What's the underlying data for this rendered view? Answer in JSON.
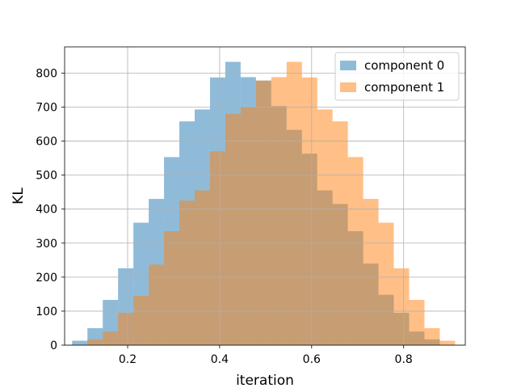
{
  "chart_data": {
    "type": "bar",
    "title": "",
    "xlabel": "iteration",
    "ylabel": "KL",
    "xlim": [
      0.063,
      0.934
    ],
    "ylim": [
      0,
      877
    ],
    "xticks": [
      0.2,
      0.4,
      0.6,
      0.8
    ],
    "xtick_labels": [
      "0.2",
      "0.4",
      "0.6",
      "0.8"
    ],
    "yticks": [
      0,
      100,
      200,
      300,
      400,
      500,
      600,
      700,
      800
    ],
    "ytick_labels": [
      "0",
      "100",
      "200",
      "300",
      "400",
      "500",
      "600",
      "700",
      "800"
    ],
    "grid": true,
    "legend_position": "upper right",
    "alpha": 0.5,
    "series": [
      {
        "name": "component 0",
        "color": "#1f77b4",
        "bin_edges": [
          0.0793,
          0.1126,
          0.1459,
          0.1792,
          0.2125,
          0.2458,
          0.2791,
          0.3124,
          0.3457,
          0.379,
          0.4123,
          0.4456,
          0.4789,
          0.5122,
          0.5455,
          0.5788,
          0.6121,
          0.6454,
          0.6787,
          0.712,
          0.7453,
          0.7786,
          0.8119,
          0.8452,
          0.8785,
          0.9118
        ],
        "counts": [
          13,
          50,
          133,
          226,
          360,
          430,
          553,
          658,
          693,
          787,
          833,
          788,
          778,
          703,
          633,
          563,
          455,
          415,
          335,
          240,
          148,
          95,
          40,
          17,
          0
        ]
      },
      {
        "name": "component 1",
        "color": "#ff7f0e",
        "bin_edges": [
          0.0793,
          0.1126,
          0.1459,
          0.1792,
          0.2125,
          0.2458,
          0.2791,
          0.3124,
          0.3457,
          0.379,
          0.4123,
          0.4456,
          0.4789,
          0.5122,
          0.5455,
          0.5788,
          0.6121,
          0.6454,
          0.6787,
          0.712,
          0.7453,
          0.7786,
          0.8119,
          0.8452,
          0.8785,
          0.9118
        ],
        "counts": [
          0,
          17,
          40,
          95,
          145,
          237,
          335,
          425,
          455,
          570,
          680,
          700,
          778,
          788,
          833,
          787,
          693,
          658,
          553,
          430,
          360,
          226,
          133,
          50,
          13
        ]
      }
    ]
  }
}
